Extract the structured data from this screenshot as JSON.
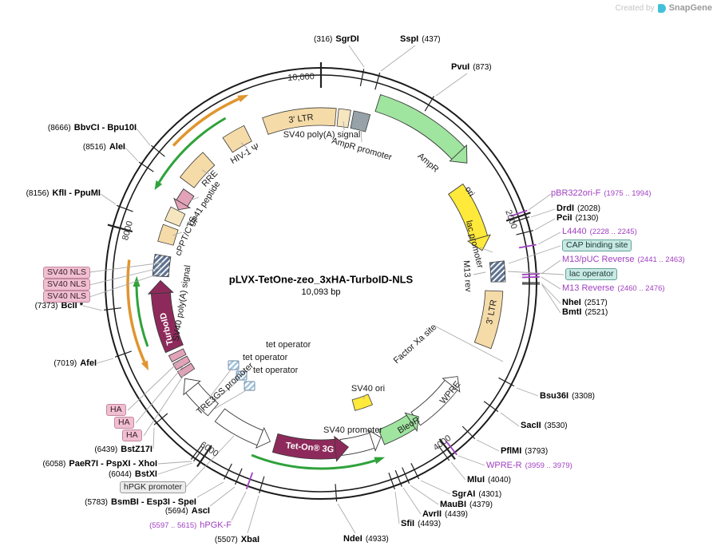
{
  "watermark": {
    "created_by": "Created by",
    "brand": "SnapGene"
  },
  "title": {
    "name": "pLVX-TetOne-zeo_3xHA-TurboID-NLS",
    "size": "10,093 bp"
  },
  "scale": {
    "t10000": "10,000",
    "t2000": "2000",
    "t4000": "4000",
    "t6000": "6000",
    "t8000": "8000"
  },
  "sites": {
    "sgrdi": {
      "pos": "(316)",
      "name": "SgrDI"
    },
    "sspi": {
      "name": "SspI",
      "pos": "(437)"
    },
    "pvui": {
      "name": "PvuI",
      "pos": "(873)"
    },
    "drdi": {
      "name": "DrdI",
      "pos": "(2028)"
    },
    "pcii": {
      "name": "PciI",
      "pos": "(2130)"
    },
    "nhei": {
      "name": "NheI",
      "pos": "(2517)"
    },
    "bmti": {
      "name": "BmtI",
      "pos": "(2521)"
    },
    "bsu36i": {
      "name": "Bsu36I",
      "pos": "(3308)"
    },
    "sacii": {
      "name": "SacII",
      "pos": "(3530)"
    },
    "pflmi": {
      "name": "PflMI",
      "pos": "(3793)"
    },
    "mlui": {
      "name": "MluI",
      "pos": "(4040)"
    },
    "sgrai": {
      "name": "SgrAI",
      "pos": "(4301)"
    },
    "maubi": {
      "name": "MauBI",
      "pos": "(4379)"
    },
    "avrii": {
      "name": "AvrII",
      "pos": "(4439)"
    },
    "sfii": {
      "name": "SfiI",
      "pos": "(4493)"
    },
    "ndei": {
      "name": "NdeI",
      "pos": "(4933)"
    },
    "xbai": {
      "pos": "(5507)",
      "name": "XbaI"
    },
    "asci": {
      "pos": "(5694)",
      "name": "AscI"
    },
    "bsmbi": {
      "pos": "(5783)",
      "name": "BsmBI - Esp3I - SpeI"
    },
    "bstxi": {
      "pos": "(6044)",
      "name": "BstXI"
    },
    "paer7i": {
      "pos": "(6058)",
      "name": "PaeR7I - PspXI - XhoI"
    },
    "bstz17i": {
      "pos": "(6439)",
      "name": "BstZ17I"
    },
    "afei": {
      "pos": "(7019)",
      "name": "AfeI"
    },
    "bcli": {
      "pos": "(7373)",
      "name": "BclI *"
    },
    "kfli": {
      "pos": "(8156)",
      "name": "KflI - PpuMI"
    },
    "alei": {
      "pos": "(8516)",
      "name": "AleI"
    },
    "bbvci": {
      "pos": "(8666)",
      "name": "BbvCI - Bpu10I"
    }
  },
  "primers": {
    "pbr322ori_f": {
      "name": "pBR322ori-F",
      "range": "(1975 .. 1994)"
    },
    "l4440": {
      "name": "L4440",
      "range": "(2228 .. 2245)"
    },
    "m13_puc_rev": {
      "name": "M13/pUC Reverse",
      "range": "(2441 .. 2463)"
    },
    "m13_rev": {
      "name": "M13 Reverse",
      "range": "(2460 .. 2476)"
    },
    "wpre_r": {
      "name": "WPRE-R",
      "range": "(3959 .. 3979)"
    },
    "hpgk_f": {
      "range": "(5597 .. 5615)",
      "name": "hPGK-F"
    }
  },
  "boxed": {
    "cap_binding_site": "CAP binding site",
    "lac_operator": "lac operator",
    "hpgk_promoter": "hPGK promoter",
    "ha": "HA",
    "sv40_nls": "SV40 NLS"
  },
  "features": {
    "ltr3": "3' LTR",
    "sv40pa": "SV40 poly(A) signal",
    "hiv1psi": "HIV-1 Ψ",
    "ampr_prom": "AmpR promoter",
    "ampr": "AmpR",
    "ori": "ori",
    "lac_prom": "lac promoter",
    "m13rev": "M13 rev",
    "factor_xa": "Factor Xa site",
    "wpre": "WPRE",
    "bleor": "BleoR",
    "sv40prom": "SV40 promoter",
    "sv40ori": "SV40 ori",
    "teton": "Tet-On® 3G",
    "tre3gs": "TRE3GS promoter",
    "teto": "tet operator",
    "turboid": "TurboID",
    "cppt": "cPPT/CTS",
    "gp41": "gp41 peptide",
    "rre": "RRE"
  },
  "colors": {
    "primer_purple": "#A03FC0",
    "feature_tan": "#F5DBA8",
    "feature_pale": "#F5E6C0",
    "feature_gray": "#97A1A8",
    "feature_green": "#9FE49F",
    "feature_yellow": "#FFE93B",
    "feature_maroon": "#8E2A5B",
    "feature_pink": "#E2A2B8",
    "orf_green": "#2FA23B",
    "orf_orange": "#E0952F",
    "ring_black": "#1A1A1A",
    "leader_gray": "#ABABAB",
    "snapgene_cyan": "#41C0DC"
  }
}
